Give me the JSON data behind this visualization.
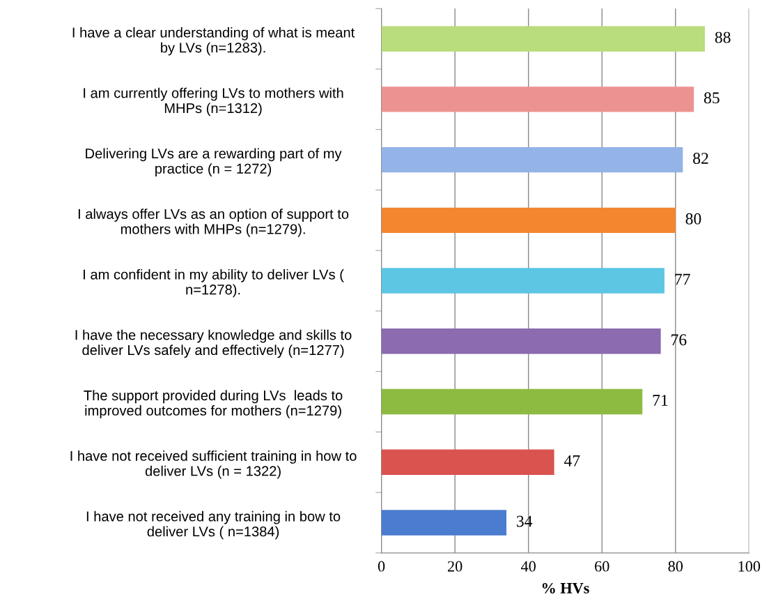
{
  "chart_data": {
    "type": "bar",
    "orientation": "horizontal",
    "xlabel": "% HVs",
    "categories": [
      "I have a clear understanding of what is meant\nby LVs (n=1283).",
      "I am currently offering LVs to mothers with\nMHPs (n=1312)",
      "Delivering LVs are a rewarding part of my\npractice (n = 1272)",
      "I always offer LVs as an option of support to\nmothers with MHPs (n=1279).",
      "I am confident in my ability to deliver LVs (\nn=1278).",
      "I have the necessary knowledge and skills to\ndeliver LVs safely and effectively (n=1277)",
      "The support provided during LVs  leads to\nimproved outcomes for mothers (n=1279)",
      "I have not received sufficient training in how to\ndeliver LVs (n = 1322)",
      "I have not received any training in bow to\ndeliver LVs ( n=1384)"
    ],
    "values": [
      88,
      85,
      82,
      80,
      77,
      76,
      71,
      47,
      34
    ],
    "colors": [
      "#b9dc7c",
      "#ec9391",
      "#94b3e6",
      "#f3862f",
      "#5cc6e3",
      "#8c6bb0",
      "#8dbb42",
      "#d9534f",
      "#4a7ccf"
    ],
    "xlim": [
      0,
      100
    ],
    "xticks": [
      0,
      20,
      40,
      60,
      80,
      100
    ],
    "grid": "x",
    "data_labels": true
  }
}
